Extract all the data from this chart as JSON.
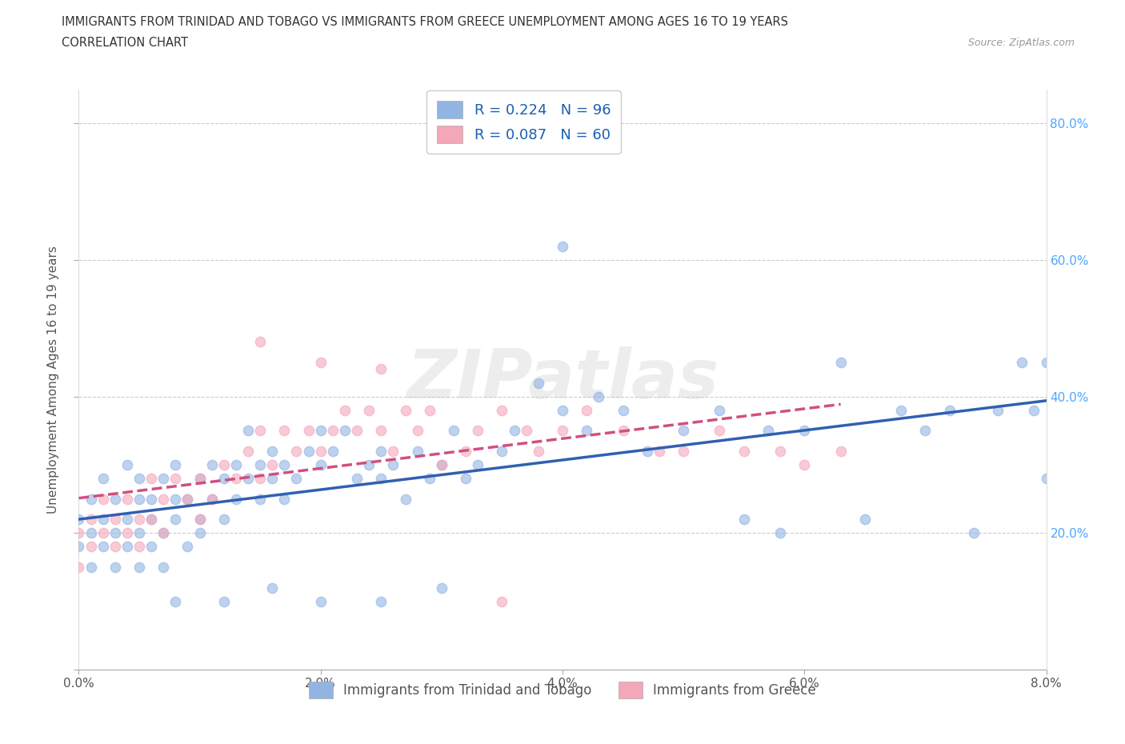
{
  "title_line1": "IMMIGRANTS FROM TRINIDAD AND TOBAGO VS IMMIGRANTS FROM GREECE UNEMPLOYMENT AMONG AGES 16 TO 19 YEARS",
  "title_line2": "CORRELATION CHART",
  "source_text": "Source: ZipAtlas.com",
  "ylabel": "Unemployment Among Ages 16 to 19 years",
  "watermark": "ZIPatlas",
  "legend_label1": "R = 0.224   N = 96",
  "legend_label2": "R = 0.087   N = 60",
  "legend_label_bottom1": "Immigrants from Trinidad and Tobago",
  "legend_label_bottom2": "Immigrants from Greece",
  "color_tt": "#92b4e3",
  "color_gr": "#f4a7b9",
  "color_tt_line": "#3060b0",
  "color_gr_line": "#d05080",
  "xlim": [
    0.0,
    0.08
  ],
  "ylim": [
    0.0,
    0.85
  ],
  "xtick_vals": [
    0.0,
    0.02,
    0.04,
    0.06,
    0.08
  ],
  "xtick_labels": [
    "0.0%",
    "2.0%",
    "4.0%",
    "6.0%",
    "8.0%"
  ],
  "ytick_vals": [
    0.0,
    0.2,
    0.4,
    0.6,
    0.8
  ],
  "ytick_labels_right": [
    "",
    "20.0%",
    "40.0%",
    "60.0%",
    "80.0%"
  ],
  "grid_color": "#cccccc",
  "bg_color": "#ffffff",
  "tick_color_right": "#4da6ff",
  "label_color": "#555555",
  "tt_x": [
    0.0,
    0.0,
    0.001,
    0.001,
    0.001,
    0.002,
    0.002,
    0.002,
    0.003,
    0.003,
    0.003,
    0.004,
    0.004,
    0.004,
    0.005,
    0.005,
    0.005,
    0.005,
    0.006,
    0.006,
    0.006,
    0.007,
    0.007,
    0.007,
    0.008,
    0.008,
    0.008,
    0.009,
    0.009,
    0.01,
    0.01,
    0.01,
    0.011,
    0.011,
    0.012,
    0.012,
    0.013,
    0.013,
    0.014,
    0.014,
    0.015,
    0.015,
    0.016,
    0.016,
    0.017,
    0.017,
    0.018,
    0.019,
    0.02,
    0.02,
    0.021,
    0.022,
    0.023,
    0.024,
    0.025,
    0.025,
    0.026,
    0.027,
    0.028,
    0.029,
    0.03,
    0.031,
    0.032,
    0.033,
    0.035,
    0.036,
    0.038,
    0.04,
    0.042,
    0.043,
    0.045,
    0.047,
    0.05,
    0.053,
    0.055,
    0.057,
    0.06,
    0.063,
    0.065,
    0.068,
    0.07,
    0.072,
    0.074,
    0.076,
    0.078,
    0.079,
    0.08,
    0.08,
    0.04,
    0.058,
    0.025,
    0.03,
    0.012,
    0.016,
    0.02,
    0.008
  ],
  "tt_y": [
    0.18,
    0.22,
    0.2,
    0.25,
    0.15,
    0.22,
    0.18,
    0.28,
    0.2,
    0.25,
    0.15,
    0.22,
    0.18,
    0.3,
    0.2,
    0.25,
    0.15,
    0.28,
    0.22,
    0.18,
    0.25,
    0.2,
    0.28,
    0.15,
    0.25,
    0.22,
    0.3,
    0.18,
    0.25,
    0.2,
    0.28,
    0.22,
    0.3,
    0.25,
    0.28,
    0.22,
    0.3,
    0.25,
    0.35,
    0.28,
    0.3,
    0.25,
    0.32,
    0.28,
    0.25,
    0.3,
    0.28,
    0.32,
    0.3,
    0.35,
    0.32,
    0.35,
    0.28,
    0.3,
    0.32,
    0.28,
    0.3,
    0.25,
    0.32,
    0.28,
    0.3,
    0.35,
    0.28,
    0.3,
    0.32,
    0.35,
    0.42,
    0.38,
    0.35,
    0.4,
    0.38,
    0.32,
    0.35,
    0.38,
    0.22,
    0.35,
    0.35,
    0.45,
    0.22,
    0.38,
    0.35,
    0.38,
    0.2,
    0.38,
    0.45,
    0.38,
    0.45,
    0.28,
    0.62,
    0.2,
    0.1,
    0.12,
    0.1,
    0.12,
    0.1,
    0.1
  ],
  "gr_x": [
    0.0,
    0.0,
    0.001,
    0.001,
    0.002,
    0.002,
    0.003,
    0.003,
    0.004,
    0.004,
    0.005,
    0.005,
    0.006,
    0.006,
    0.007,
    0.007,
    0.008,
    0.009,
    0.01,
    0.01,
    0.011,
    0.012,
    0.013,
    0.014,
    0.015,
    0.015,
    0.016,
    0.017,
    0.018,
    0.019,
    0.02,
    0.021,
    0.022,
    0.023,
    0.024,
    0.025,
    0.026,
    0.027,
    0.028,
    0.029,
    0.03,
    0.032,
    0.033,
    0.035,
    0.037,
    0.038,
    0.04,
    0.042,
    0.045,
    0.048,
    0.05,
    0.053,
    0.055,
    0.058,
    0.06,
    0.063,
    0.015,
    0.02,
    0.025,
    0.035
  ],
  "gr_y": [
    0.2,
    0.15,
    0.22,
    0.18,
    0.25,
    0.2,
    0.22,
    0.18,
    0.25,
    0.2,
    0.22,
    0.18,
    0.28,
    0.22,
    0.25,
    0.2,
    0.28,
    0.25,
    0.22,
    0.28,
    0.25,
    0.3,
    0.28,
    0.32,
    0.28,
    0.35,
    0.3,
    0.35,
    0.32,
    0.35,
    0.32,
    0.35,
    0.38,
    0.35,
    0.38,
    0.35,
    0.32,
    0.38,
    0.35,
    0.38,
    0.3,
    0.32,
    0.35,
    0.38,
    0.35,
    0.32,
    0.35,
    0.38,
    0.35,
    0.32,
    0.32,
    0.35,
    0.32,
    0.32,
    0.3,
    0.32,
    0.48,
    0.45,
    0.44,
    0.1
  ]
}
